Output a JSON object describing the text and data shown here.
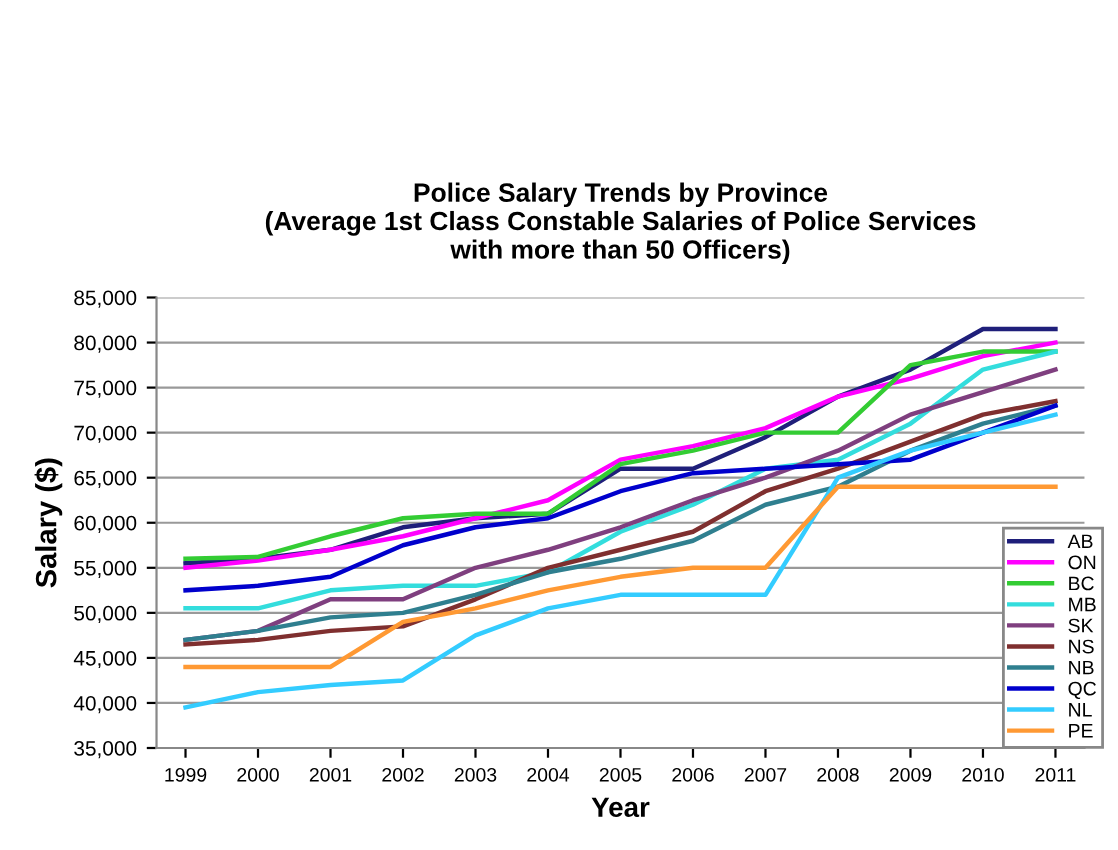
{
  "chart_data": {
    "type": "line",
    "title": "Police Salary Trends by Province\n(Average 1st Class Constable Salaries of Police Services\nwith more than 50 Officers)",
    "xlabel": "Year",
    "ylabel": "Salary ($)",
    "categories": [
      "1999",
      "2000",
      "2001",
      "2002",
      "2003",
      "2004",
      "2005",
      "2006",
      "2007",
      "2008",
      "2009",
      "2010",
      "2011"
    ],
    "series": [
      {
        "name": "AB",
        "color": "#1f1f7a",
        "values": [
          55500,
          56000,
          57000,
          59500,
          60500,
          61000,
          66000,
          66000,
          69500,
          74000,
          77000,
          81500,
          81500
        ]
      },
      {
        "name": "ON",
        "color": "#ff00ff",
        "values": [
          55000,
          55800,
          57000,
          58500,
          60500,
          62500,
          67000,
          68500,
          70500,
          74000,
          76000,
          78500,
          80000
        ]
      },
      {
        "name": "BC",
        "color": "#33cc33",
        "values": [
          56000,
          56200,
          58500,
          60500,
          61000,
          61000,
          66500,
          68000,
          70000,
          70000,
          77500,
          79000,
          79000
        ]
      },
      {
        "name": "MB",
        "color": "#33dddd",
        "values": [
          50500,
          50500,
          52500,
          53000,
          53000,
          54500,
          59000,
          62000,
          66000,
          67000,
          71000,
          77000,
          79000
        ]
      },
      {
        "name": "SK",
        "color": "#7f3f7f",
        "values": [
          47000,
          48000,
          51500,
          51500,
          55000,
          57000,
          59500,
          62500,
          65000,
          68000,
          72000,
          74500,
          77000
        ]
      },
      {
        "name": "NS",
        "color": "#7f2f2f",
        "values": [
          46500,
          47000,
          48000,
          48500,
          51500,
          55000,
          57000,
          59000,
          63500,
          66000,
          69000,
          72000,
          73500
        ]
      },
      {
        "name": "NB",
        "color": "#2f7f8f",
        "values": [
          47000,
          48000,
          49500,
          50000,
          52000,
          54500,
          56000,
          58000,
          62000,
          64000,
          68000,
          71000,
          73000
        ]
      },
      {
        "name": "QC",
        "color": "#0000cc",
        "values": [
          52500,
          53000,
          54000,
          57500,
          59500,
          60500,
          63500,
          65500,
          66000,
          66500,
          67000,
          70000,
          73000
        ]
      },
      {
        "name": "NL",
        "color": "#33ccff",
        "values": [
          39500,
          41200,
          42000,
          42500,
          47500,
          50500,
          52000,
          52000,
          52000,
          65000,
          68000,
          70000,
          72000
        ]
      },
      {
        "name": "PE",
        "color": "#ff9933",
        "values": [
          44000,
          44000,
          44000,
          49000,
          50500,
          52500,
          54000,
          55000,
          55000,
          64000,
          64000,
          64000,
          64000
        ]
      }
    ],
    "ylim": [
      35000,
      85000
    ],
    "yticks": [
      {
        "value": 35000,
        "label": "35,000"
      },
      {
        "value": 40000,
        "label": "40,000"
      },
      {
        "value": 45000,
        "label": "45,000"
      },
      {
        "value": 50000,
        "label": "50,000"
      },
      {
        "value": 55000,
        "label": "55,000"
      },
      {
        "value": 60000,
        "label": "60,000"
      },
      {
        "value": 65000,
        "label": "65,000"
      },
      {
        "value": 70000,
        "label": "70,000"
      },
      {
        "value": 75000,
        "label": "75,000"
      },
      {
        "value": 80000,
        "label": "80,000"
      },
      {
        "value": 85000,
        "label": "85,000"
      }
    ],
    "grid": "y",
    "legend": "bottom right",
    "marker": "none",
    "line_style": "solid"
  }
}
